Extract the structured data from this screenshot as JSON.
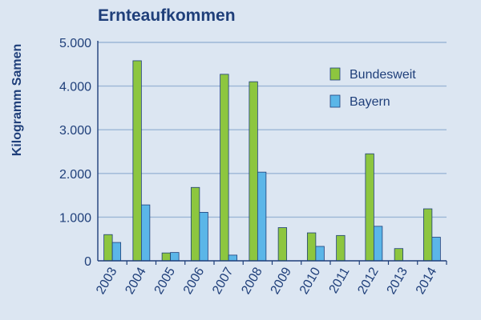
{
  "chart_data": {
    "type": "bar",
    "title": "Ernteaufkommen",
    "xlabel": "",
    "ylabel": "Kilogramm Samen",
    "ylim": [
      0,
      5000
    ],
    "yticks": [
      0,
      1000,
      2000,
      3000,
      4000,
      5000
    ],
    "ytick_labels": [
      "0",
      "1.000",
      "2.000",
      "3.000",
      "4.000",
      "5.000"
    ],
    "grid": true,
    "legend_position": "top-right",
    "categories": [
      "2003",
      "2004",
      "2005",
      "2006",
      "2007",
      "2008",
      "2009",
      "2010",
      "2011",
      "2012",
      "2013",
      "2014"
    ],
    "series": [
      {
        "name": "Bundesweit",
        "color": "#8dc63f",
        "values": [
          600,
          4580,
          180,
          1680,
          4270,
          4100,
          760,
          640,
          580,
          2450,
          280,
          1190
        ]
      },
      {
        "name": "Bayern",
        "color": "#5bb6e8",
        "values": [
          420,
          1280,
          190,
          1110,
          130,
          2030,
          null,
          330,
          null,
          790,
          null,
          540
        ]
      }
    ]
  }
}
